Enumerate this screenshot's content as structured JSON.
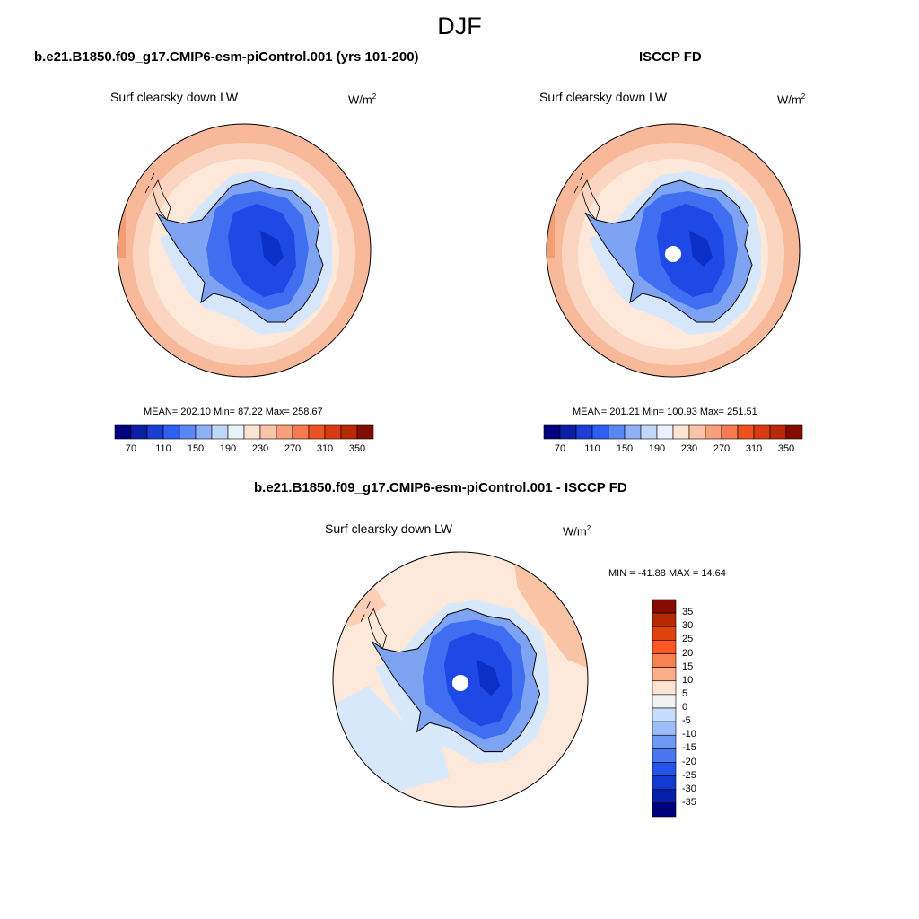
{
  "season": "DJF",
  "panels": [
    {
      "title": "b.e21.B1850.f09_g17.CMIP6-esm-piControl.001 (yrs 101-200)",
      "variable": "Surf clearsky down LW",
      "units_base": "W/m",
      "units_exp": "2",
      "stats": "MEAN= 202.10  Min=  87.22  Max= 258.67"
    },
    {
      "title": "ISCCP FD",
      "variable": "Surf clearsky down LW",
      "units_base": "W/m",
      "units_exp": "2",
      "stats": "MEAN= 201.21  Min= 100.93  Max= 251.51"
    },
    {
      "title": "b.e21.B1850.f09_g17.CMIP6-esm-piControl.001 - ISCCP FD",
      "variable": "Surf clearsky down LW",
      "units_base": "W/m",
      "units_exp": "2",
      "stats": "MIN = -41.88 MAX =  14.64"
    }
  ],
  "colorbar_main": {
    "colors": [
      "#00007f",
      "#0b1ea6",
      "#1a3fd0",
      "#2f5ff0",
      "#5b87f5",
      "#8fb0f5",
      "#c2d8fa",
      "#e8f1fc",
      "#fde3d3",
      "#fbc4a8",
      "#f8a07c",
      "#f57a50",
      "#ef5120",
      "#d93b10",
      "#b82a06",
      "#850c00"
    ],
    "labels": [
      "70",
      "110",
      "150",
      "190",
      "230",
      "270",
      "310",
      "350"
    ]
  },
  "colorbar_diff": {
    "colors": [
      "#850c00",
      "#b52a05",
      "#e0420d",
      "#ff5722",
      "#f88150",
      "#fbaf88",
      "#fde3d3",
      "#f1f1f1",
      "#c8dcfb",
      "#9cbdf7",
      "#6f98f3",
      "#4878f0",
      "#2353ea",
      "#123ad0",
      "#0520a6",
      "#00007f"
    ],
    "labels": [
      "35",
      "30",
      "25",
      "20",
      "15",
      "10",
      "5",
      "0",
      "-5",
      "-10",
      "-15",
      "-20",
      "-25",
      "-30",
      "-35"
    ]
  },
  "maps": [
    {
      "name": "model",
      "outer": "#f7b99a",
      "mid": "#fbd5bf",
      "inner": "#fde8d9",
      "ocean_ice": "#d6e6fb",
      "land_lo": "#7ea3f2",
      "land_mid": "#3f6ef0",
      "land_hi": "#1f49e6",
      "land_core": "#0c2fc8",
      "pole_hole": false
    },
    {
      "name": "isccp",
      "outer": "#f7b99a",
      "mid": "#fbd5bf",
      "inner": "#fde8d9",
      "ocean_ice": "#d6e6fb",
      "land_lo": "#7ea3f2",
      "land_mid": "#3f6ef0",
      "land_hi": "#1f49e6",
      "land_core": "#0c2fc8",
      "pole_hole": true
    },
    {
      "name": "diff",
      "outer": "#fde8d9",
      "mid": "#f9c3a5",
      "inner": "#fde8d9",
      "ocean_ice": "#d8e8fb",
      "land_lo": "#7ea3f2",
      "land_mid": "#3f6ef0",
      "land_hi": "#1f49e6",
      "land_core": "#0c2fc8",
      "pole_hole": true
    }
  ]
}
